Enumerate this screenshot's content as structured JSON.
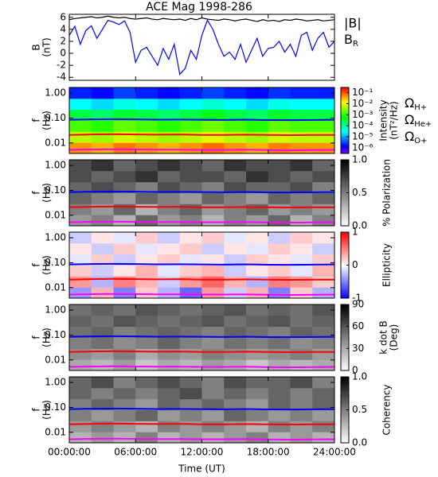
{
  "chart_data": [
    {
      "type": "line",
      "title": "ACE Mag 1998-286",
      "ylabel": [
        "B",
        "(nT)"
      ],
      "x": [
        0,
        0.5,
        1,
        1.5,
        2,
        2.5,
        3,
        3.5,
        4,
        4.5,
        5,
        5.5,
        6,
        6.5,
        7,
        7.5,
        8,
        8.5,
        9,
        9.5,
        10,
        10.5,
        11,
        11.5,
        12,
        12.5,
        13,
        13.5,
        14,
        14.5,
        15,
        15.5,
        16,
        16.5,
        17,
        17.5,
        18,
        18.5,
        19,
        19.5,
        20,
        20.5,
        21,
        21.5,
        22,
        22.5,
        23,
        23.5,
        24
      ],
      "ylim": [
        -4.5,
        6.5
      ],
      "yticks": [
        -4,
        -2,
        0,
        2,
        4,
        6
      ],
      "series": [
        {
          "name": "|B|",
          "color": "#000000",
          "values": [
            5.6,
            5.8,
            5.9,
            6.0,
            6.1,
            5.9,
            6.0,
            6.2,
            6.0,
            5.9,
            6.0,
            5.8,
            5.7,
            5.8,
            5.9,
            5.7,
            5.6,
            5.8,
            5.7,
            5.6,
            5.7,
            5.5,
            5.8,
            5.6,
            5.9,
            5.7,
            5.6,
            5.5,
            5.7,
            5.6,
            5.4,
            5.6,
            5.7,
            5.5,
            5.3,
            5.6,
            5.4,
            5.5,
            5.3,
            5.6,
            5.5,
            5.7,
            5.6,
            5.4,
            5.5,
            5.6,
            5.4,
            5.5,
            5.6
          ]
        },
        {
          "name": "B_R",
          "color": "#0000ff",
          "values": [
            3.0,
            4.5,
            1.5,
            3.8,
            4.6,
            2.5,
            4.0,
            5.5,
            5.2,
            4.8,
            5.4,
            3.5,
            -1.5,
            0.5,
            1.0,
            -0.5,
            -2.0,
            0.8,
            -1.0,
            1.5,
            -3.5,
            -2.5,
            0.5,
            -1.0,
            3.0,
            5.5,
            4.0,
            1.5,
            -0.5,
            0.2,
            -1.0,
            1.5,
            -1.5,
            0.5,
            2.5,
            -0.5,
            0.8,
            1.0,
            2.0,
            0.2,
            1.5,
            -0.5,
            3.0,
            3.5,
            0.5,
            2.5,
            3.5,
            1.0,
            2.0
          ]
        }
      ]
    },
    {
      "type": "heatmap",
      "ylabel": [
        "f",
        "(Hz)"
      ],
      "ylog": true,
      "ylim": [
        0.0038,
        1.68
      ],
      "yticks": [
        {
          "value": 0.01,
          "label": "0.01"
        },
        {
          "value": 0.1,
          "label": "0.10"
        },
        {
          "value": 1,
          "label": "1.00"
        }
      ],
      "x_edges": [
        0,
        2,
        4,
        6,
        8,
        10,
        12,
        14,
        16,
        18,
        20,
        22,
        24
      ],
      "y_edges": [
        0.0038,
        0.0105,
        0.029,
        0.08,
        0.22,
        0.61,
        1.68
      ],
      "colormap": "rainbow",
      "zlog": true,
      "zlim": [
        3e-07,
        0.3
      ],
      "zlabel": [
        "Intensity",
        "(nT²/Hz)"
      ],
      "zticks": [
        {
          "value": 0.1,
          "label": "10⁻¹"
        },
        {
          "value": 0.01,
          "label": "10⁻²"
        },
        {
          "value": 0.001,
          "label": "10⁻³"
        },
        {
          "value": 0.0001,
          "label": "10⁻⁴"
        },
        {
          "value": 1e-05,
          "label": "10⁻⁵"
        },
        {
          "value": 1e-06,
          "label": "10⁻⁶"
        }
      ],
      "z": [
        [
          0.05,
          0.035,
          0.07,
          0.05,
          0.035,
          0.05,
          0.08,
          0.05,
          0.035,
          0.065,
          0.05,
          0.05
        ],
        [
          0.006,
          0.0042,
          0.0084,
          0.006,
          0.0042,
          0.006,
          0.0096,
          0.006,
          0.0042,
          0.0078,
          0.006,
          0.006
        ],
        [
          0.0015,
          0.001,
          0.0021,
          0.0015,
          0.001,
          0.0015,
          0.0024,
          0.0015,
          0.001,
          0.002,
          0.0015,
          0.0015
        ],
        [
          0.0003,
          0.0002,
          0.0004,
          0.0003,
          0.0002,
          0.0003,
          0.0005,
          0.0003,
          0.0002,
          0.0004,
          0.0003,
          0.0003
        ],
        [
          3e-05,
          2e-05,
          4e-05,
          3e-05,
          2e-05,
          3e-05,
          5e-05,
          3e-05,
          2e-05,
          4e-05,
          3e-05,
          3e-05
        ],
        [
          2e-06,
          1.5e-06,
          3e-06,
          2e-06,
          1.5e-06,
          2e-06,
          3e-06,
          2e-06,
          1.5e-06,
          2.5e-06,
          2e-06,
          2e-06
        ]
      ],
      "x": [
        0,
        2,
        4,
        6,
        8,
        10,
        12,
        14,
        16,
        18,
        20,
        22,
        24
      ],
      "series": [
        {
          "name": "Ω_H+",
          "color": "#0000ff",
          "values": [
            0.085,
            0.088,
            0.09,
            0.088,
            0.086,
            0.087,
            0.085,
            0.084,
            0.086,
            0.083,
            0.082,
            0.084,
            0.085
          ]
        },
        {
          "name": "Ω_He+",
          "color": "#ff0000",
          "values": [
            0.021,
            0.022,
            0.0225,
            0.022,
            0.0215,
            0.022,
            0.021,
            0.021,
            0.0215,
            0.021,
            0.0205,
            0.021,
            0.021
          ]
        },
        {
          "name": "Ω_O+",
          "color": "#ff00ff",
          "values": [
            0.0053,
            0.0055,
            0.0056,
            0.0055,
            0.0054,
            0.0054,
            0.0053,
            0.0053,
            0.0054,
            0.0052,
            0.0051,
            0.0052,
            0.0053
          ]
        }
      ]
    },
    {
      "type": "heatmap",
      "ylabel": [
        "f",
        "(Hz)"
      ],
      "ylog": true,
      "ylim": [
        0.0038,
        1.68
      ],
      "yticks": [
        {
          "value": 0.01,
          "label": "0.01"
        },
        {
          "value": 0.1,
          "label": "0.10"
        },
        {
          "value": 1,
          "label": "1.00"
        }
      ],
      "x_edges": [
        0,
        2,
        4,
        6,
        8,
        10,
        12,
        14,
        16,
        18,
        20,
        22,
        24
      ],
      "y_edges": [
        0.0038,
        0.0105,
        0.029,
        0.08,
        0.22,
        0.61,
        1.68
      ],
      "colormap": "gray",
      "zlim": [
        0,
        1
      ],
      "zlabel": [
        "% Polarization"
      ],
      "zticks": [
        {
          "value": 0,
          "label": "0.0"
        },
        {
          "value": 0.5,
          "label": "0.5"
        },
        {
          "value": 1,
          "label": "1.0"
        }
      ],
      "z": [
        [
          0.4,
          0.5,
          0.3,
          0.6,
          0.4,
          0.5,
          0.3,
          0.5,
          0.4,
          0.6,
          0.3,
          0.5
        ],
        [
          0.5,
          0.4,
          0.6,
          0.3,
          0.5,
          0.6,
          0.4,
          0.5,
          0.6,
          0.4,
          0.5,
          0.4
        ],
        [
          0.6,
          0.5,
          0.4,
          0.6,
          0.5,
          0.4,
          0.6,
          0.5,
          0.4,
          0.6,
          0.5,
          0.6
        ],
        [
          0.6,
          0.7,
          0.6,
          0.5,
          0.7,
          0.6,
          0.5,
          0.7,
          0.6,
          0.6,
          0.7,
          0.5
        ],
        [
          0.7,
          0.6,
          0.7,
          0.8,
          0.6,
          0.7,
          0.7,
          0.6,
          0.8,
          0.7,
          0.6,
          0.7
        ],
        [
          0.7,
          0.8,
          0.6,
          0.7,
          0.8,
          0.7,
          0.6,
          0.8,
          0.7,
          0.7,
          0.8,
          0.6
        ]
      ]
    },
    {
      "type": "heatmap",
      "ylabel": [
        "f",
        "(Hz)"
      ],
      "ylog": true,
      "ylim": [
        0.0038,
        1.68
      ],
      "yticks": [
        {
          "value": 0.01,
          "label": "0.01"
        },
        {
          "value": 0.1,
          "label": "0.10"
        },
        {
          "value": 1,
          "label": "1.00"
        }
      ],
      "x_edges": [
        0,
        2,
        4,
        6,
        8,
        10,
        12,
        14,
        16,
        18,
        20,
        22,
        24
      ],
      "y_edges": [
        0.0038,
        0.0105,
        0.029,
        0.08,
        0.22,
        0.61,
        1.68
      ],
      "colormap": "bwr",
      "zlim": [
        -1,
        1
      ],
      "zlabel": [
        "Ellipticity"
      ],
      "zticks": [
        -1,
        0,
        1
      ],
      "z": [
        [
          -0.4,
          0.3,
          -0.5,
          0.2,
          -0.3,
          -0.6,
          0.4,
          -0.2,
          0.3,
          -0.5,
          0.2,
          -0.3
        ],
        [
          0.4,
          -0.3,
          0.5,
          0.3,
          -0.2,
          0.4,
          0.6,
          0.3,
          -0.3,
          0.5,
          0.4,
          0.2
        ],
        [
          0.2,
          -0.2,
          0.1,
          0.3,
          -0.1,
          0.2,
          0.3,
          -0.2,
          0.1,
          0.2,
          -0.1,
          0.3
        ],
        [
          -0.1,
          0.2,
          -0.2,
          0.1,
          0.2,
          -0.1,
          0.1,
          -0.2,
          0.2,
          0.1,
          -0.1,
          0.2
        ],
        [
          0.1,
          -0.2,
          0.2,
          -0.1,
          0.1,
          0.2,
          -0.2,
          0.1,
          -0.1,
          0.2,
          0.1,
          -0.2
        ],
        [
          -0.2,
          0.1,
          -0.1,
          0.2,
          -0.2,
          0.1,
          0.2,
          -0.1,
          0.1,
          -0.2,
          0.2,
          0.1
        ]
      ]
    },
    {
      "type": "heatmap",
      "ylabel": [
        "f",
        "(Hz)"
      ],
      "ylog": true,
      "ylim": [
        0.0038,
        1.68
      ],
      "yticks": [
        {
          "value": 0.01,
          "label": "0.01"
        },
        {
          "value": 0.1,
          "label": "0.10"
        },
        {
          "value": 1,
          "label": "1.00"
        }
      ],
      "x_edges": [
        0,
        2,
        4,
        6,
        8,
        10,
        12,
        14,
        16,
        18,
        20,
        22,
        24
      ],
      "y_edges": [
        0.0038,
        0.0105,
        0.029,
        0.08,
        0.22,
        0.61,
        1.68
      ],
      "colormap": "gray",
      "zlim": [
        0,
        90
      ],
      "zlabel": [
        "k dot B",
        "(Deg)"
      ],
      "zticks": [
        0,
        30,
        60,
        90
      ],
      "z": [
        [
          30,
          25,
          35,
          20,
          30,
          25,
          35,
          30,
          20,
          30,
          25,
          30
        ],
        [
          40,
          35,
          45,
          30,
          40,
          35,
          45,
          40,
          35,
          40,
          45,
          35
        ],
        [
          45,
          50,
          40,
          45,
          55,
          45,
          40,
          50,
          45,
          50,
          40,
          45
        ],
        [
          50,
          55,
          45,
          50,
          55,
          50,
          45,
          55,
          50,
          45,
          55,
          50
        ],
        [
          55,
          50,
          60,
          55,
          50,
          55,
          60,
          50,
          55,
          60,
          50,
          55
        ],
        [
          50,
          55,
          50,
          60,
          55,
          50,
          55,
          60,
          50,
          55,
          50,
          60
        ]
      ]
    },
    {
      "type": "heatmap",
      "ylabel": [
        "f",
        "(Hz)"
      ],
      "ylog": true,
      "ylim": [
        0.0038,
        1.68
      ],
      "yticks": [
        {
          "value": 0.01,
          "label": "0.01"
        },
        {
          "value": 0.1,
          "label": "0.10"
        },
        {
          "value": 1,
          "label": "1.00"
        }
      ],
      "x_edges": [
        0,
        2,
        4,
        6,
        8,
        10,
        12,
        14,
        16,
        18,
        20,
        22,
        24
      ],
      "y_edges": [
        0.0038,
        0.0105,
        0.029,
        0.08,
        0.22,
        0.61,
        1.68
      ],
      "colormap": "gray",
      "zlim": [
        0,
        1
      ],
      "zlabel": [
        "Coherency"
      ],
      "zticks": [
        {
          "value": 0,
          "label": "0.0"
        },
        {
          "value": 0.5,
          "label": "0.5"
        },
        {
          "value": 1,
          "label": "1.0"
        }
      ],
      "z": [
        [
          0.3,
          0.4,
          0.3,
          0.5,
          0.3,
          0.4,
          0.3,
          0.4,
          0.5,
          0.3,
          0.4,
          0.3
        ],
        [
          0.4,
          0.5,
          0.4,
          0.3,
          0.5,
          0.4,
          0.5,
          0.4,
          0.3,
          0.5,
          0.4,
          0.5
        ],
        [
          0.5,
          0.4,
          0.5,
          0.6,
          0.4,
          0.5,
          0.4,
          0.6,
          0.5,
          0.4,
          0.5,
          0.4
        ],
        [
          0.5,
          0.6,
          0.5,
          0.4,
          0.6,
          0.5,
          0.6,
          0.5,
          0.4,
          0.6,
          0.5,
          0.6
        ],
        [
          0.6,
          0.5,
          0.6,
          0.5,
          0.6,
          0.7,
          0.5,
          0.6,
          0.5,
          0.6,
          0.5,
          0.6
        ],
        [
          0.6,
          0.7,
          0.5,
          0.6,
          0.7,
          0.6,
          0.5,
          0.7,
          0.6,
          0.6,
          0.7,
          0.5
        ]
      ],
      "xlim": [
        0,
        24
      ],
      "xlabel": "Time (UT)",
      "xticks": [
        {
          "value": 0,
          "label": "00:00:00"
        },
        {
          "value": 6,
          "label": "06:00:00"
        },
        {
          "value": 12,
          "label": "12:00:00"
        },
        {
          "value": 18,
          "label": "18:00:00"
        },
        {
          "value": 24,
          "label": "24:00:00"
        }
      ]
    }
  ]
}
